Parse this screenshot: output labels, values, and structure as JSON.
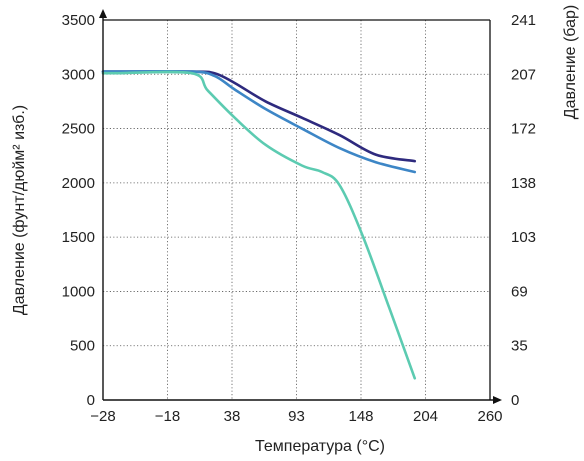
{
  "chart_data": {
    "type": "line",
    "xlabel": "Температура (°C)",
    "ylabel_left": "Давление (фунт/дюйм² изб.)",
    "ylabel_right": "Давление (бар)",
    "xlim": [
      -28,
      260
    ],
    "ylim": [
      0,
      3500
    ],
    "ylim_right": [
      0,
      241
    ],
    "x_ticks": [
      "−28",
      "−18",
      "38",
      "93",
      "148",
      "204",
      "260"
    ],
    "y_ticks_left": [
      "0",
      "500",
      "1000",
      "1500",
      "2000",
      "2500",
      "3000",
      "3500"
    ],
    "y_ticks_right": [
      "0",
      "35",
      "69",
      "103",
      "138",
      "172",
      "207",
      "241"
    ],
    "grid": true,
    "series": [
      {
        "color": "#2e2a7e",
        "values": [
          [
            -28,
            3025
          ],
          [
            -18,
            3025
          ],
          [
            38,
            3025
          ],
          [
            55,
            3010
          ],
          [
            70,
            2920
          ],
          [
            93,
            2750
          ],
          [
            120,
            2600
          ],
          [
            148,
            2440
          ],
          [
            175,
            2260
          ],
          [
            204,
            2200
          ]
        ]
      },
      {
        "color": "#3d86c6",
        "values": [
          [
            -28,
            3025
          ],
          [
            -18,
            3025
          ],
          [
            38,
            3025
          ],
          [
            55,
            2985
          ],
          [
            70,
            2860
          ],
          [
            93,
            2680
          ],
          [
            120,
            2500
          ],
          [
            148,
            2320
          ],
          [
            175,
            2190
          ],
          [
            204,
            2100
          ]
        ]
      },
      {
        "color": "#5ccbb1",
        "values": [
          [
            -28,
            3010
          ],
          [
            -18,
            3010
          ],
          [
            38,
            3010
          ],
          [
            50,
            2850
          ],
          [
            70,
            2600
          ],
          [
            93,
            2350
          ],
          [
            120,
            2160
          ],
          [
            135,
            2100
          ],
          [
            148,
            1980
          ],
          [
            165,
            1520
          ],
          [
            185,
            850
          ],
          [
            204,
            200
          ]
        ]
      }
    ]
  }
}
